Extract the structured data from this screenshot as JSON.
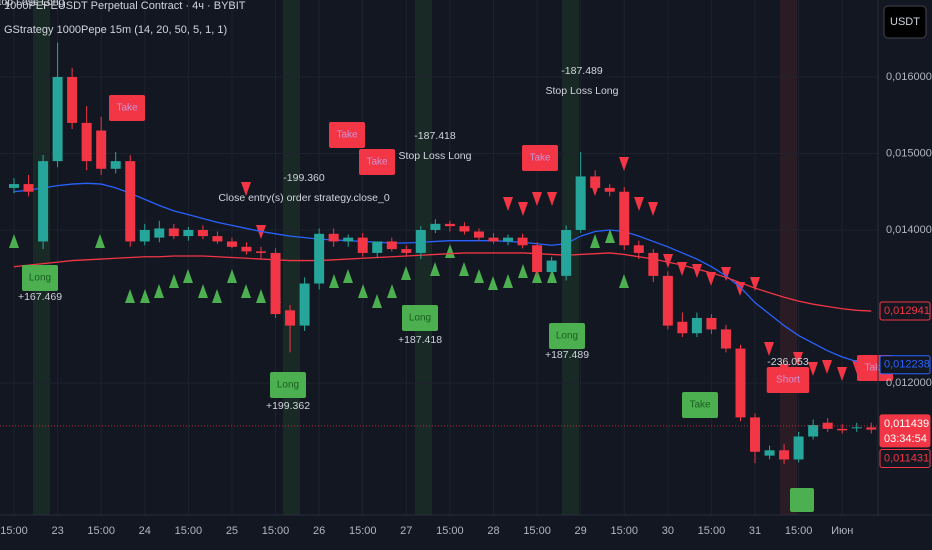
{
  "header": {
    "symbol": "1000PEPEUSDT Perpetual Contract · 4ч · BYBIT",
    "indicator": "GStrategy 1000Pepe 15m (14, 20, 50, 5, 1, 1)",
    "currency_button": "USDT"
  },
  "chart_data": {
    "type": "candlestick",
    "categories": [
      "15:00",
      null,
      null,
      "23",
      null,
      null,
      "15:00",
      null,
      null,
      "24",
      null,
      null,
      "15:00",
      null,
      null,
      "25",
      null,
      null,
      "15:00",
      null,
      null,
      "26",
      null,
      null,
      "15:00",
      null,
      null,
      "27",
      null,
      null,
      "15:00",
      null,
      null,
      "28",
      null,
      null,
      "15:00",
      null,
      null,
      "29",
      null,
      null,
      "15:00",
      null,
      null,
      "30",
      null,
      null,
      "15:00",
      null,
      null,
      "31",
      null,
      null,
      "15:00",
      null,
      null,
      "Июн",
      null,
      null
    ],
    "open": [
      0.01455,
      0.0146,
      0.01385,
      0.0149,
      0.016,
      0.0154,
      0.0153,
      0.0148,
      0.0149,
      0.01385,
      0.0139,
      0.01402,
      0.01392,
      0.014,
      0.01392,
      0.01385,
      0.01378,
      0.01372,
      0.0137,
      0.01295,
      0.01275,
      0.0133,
      0.01395,
      0.01385,
      0.0139,
      0.0137,
      0.01385,
      0.01375,
      0.0137,
      0.014,
      0.01408,
      0.01405,
      0.01398,
      0.0139,
      0.01385,
      0.0139,
      0.0138,
      0.01345,
      0.0134,
      0.014,
      0.0147,
      0.01455,
      0.0145,
      0.0138,
      0.0137,
      0.0134,
      0.0128,
      0.01265,
      0.01285,
      0.0127,
      0.01245,
      0.01155,
      0.01105,
      0.01112,
      0.011,
      0.0113,
      0.01148,
      0.0114,
      0.01142,
      0.01142
    ],
    "high": [
      0.01468,
      0.01472,
      0.01498,
      0.01645,
      0.01612,
      0.01562,
      0.01548,
      0.01502,
      0.01498,
      0.01408,
      0.01412,
      0.01408,
      0.01404,
      0.01406,
      0.01398,
      0.0139,
      0.01384,
      0.01378,
      0.01376,
      0.01302,
      0.01338,
      0.01402,
      0.01402,
      0.01394,
      0.01396,
      0.01384,
      0.0139,
      0.0138,
      0.01405,
      0.01414,
      0.01412,
      0.0141,
      0.01402,
      0.01396,
      0.01394,
      0.01395,
      0.01384,
      0.01365,
      0.01406,
      0.01502,
      0.01478,
      0.0146,
      0.01456,
      0.01386,
      0.01375,
      0.01346,
      0.01292,
      0.01292,
      0.0129,
      0.01276,
      0.0125,
      0.0116,
      0.01118,
      0.0112,
      0.01136,
      0.01152,
      0.01154,
      0.01146,
      0.01148,
      0.01148
    ],
    "low": [
      0.01448,
      0.01444,
      0.01375,
      0.01482,
      0.01532,
      0.01478,
      0.01472,
      0.01474,
      0.01378,
      0.0138,
      0.01384,
      0.01388,
      0.01386,
      0.01388,
      0.01382,
      0.01376,
      0.01368,
      0.01362,
      0.01285,
      0.0124,
      0.01268,
      0.01322,
      0.01378,
      0.01378,
      0.01365,
      0.01364,
      0.01372,
      0.01365,
      0.01362,
      0.01396,
      0.01398,
      0.01394,
      0.01386,
      0.01382,
      0.0138,
      0.01376,
      0.0134,
      0.0134,
      0.01334,
      0.01396,
      0.01448,
      0.01444,
      0.01374,
      0.01362,
      0.01332,
      0.0127,
      0.0126,
      0.0126,
      0.01264,
      0.0124,
      0.0115,
      0.01095,
      0.011,
      0.01094,
      0.01096,
      0.01126,
      0.01136,
      0.01134,
      0.01136,
      0.01134
    ],
    "close": [
      0.0146,
      0.0145,
      0.0149,
      0.016,
      0.0154,
      0.0149,
      0.0148,
      0.0149,
      0.01385,
      0.014,
      0.01402,
      0.01392,
      0.014,
      0.01392,
      0.01385,
      0.01378,
      0.01372,
      0.0137,
      0.0129,
      0.01275,
      0.0133,
      0.01395,
      0.01385,
      0.0139,
      0.0137,
      0.01385,
      0.01375,
      0.0137,
      0.014,
      0.01408,
      0.01405,
      0.01398,
      0.0139,
      0.01385,
      0.0139,
      0.0138,
      0.01345,
      0.0136,
      0.014,
      0.0147,
      0.01455,
      0.0145,
      0.0138,
      0.0137,
      0.0134,
      0.01275,
      0.01265,
      0.01285,
      0.0127,
      0.01245,
      0.01155,
      0.0111,
      0.01112,
      0.011,
      0.0113,
      0.01145,
      0.0114,
      0.01138,
      0.01142,
      0.01139
    ],
    "up_color": "#26a69a",
    "down_color": "#f23645",
    "moving_averages": [
      {
        "color": "#2962ff",
        "values": [
          0.0145,
          0.01452,
          0.01455,
          0.01458,
          0.0146,
          0.01461,
          0.0146,
          0.01455,
          0.01448,
          0.0144,
          0.01432,
          0.01425,
          0.0142,
          0.01415,
          0.0141,
          0.01406,
          0.01402,
          0.01398,
          0.01395,
          0.01392,
          0.0139,
          0.01388,
          0.01387,
          0.01386,
          0.01385,
          0.01384,
          0.01383,
          0.01383,
          0.01384,
          0.01385,
          0.01386,
          0.01386,
          0.01386,
          0.01386,
          0.01385,
          0.01384,
          0.01382,
          0.0138,
          0.01382,
          0.01392,
          0.01398,
          0.014,
          0.01398,
          0.01392,
          0.01385,
          0.01378,
          0.0137,
          0.01362,
          0.01352,
          0.0134,
          0.01325,
          0.01305,
          0.0129,
          0.01275,
          0.01262,
          0.01252,
          0.01242,
          0.01234,
          0.01228,
          0.01224
        ]
      },
      {
        "color": "#f23645",
        "values": [
          0.01352,
          0.01354,
          0.01356,
          0.01358,
          0.0136,
          0.01361,
          0.01362,
          0.01363,
          0.01364,
          0.01365,
          0.01365,
          0.01366,
          0.01366,
          0.01366,
          0.01365,
          0.01364,
          0.01363,
          0.01362,
          0.01361,
          0.0136,
          0.0136,
          0.0136,
          0.01361,
          0.01362,
          0.01363,
          0.01364,
          0.01365,
          0.01366,
          0.01367,
          0.01368,
          0.01369,
          0.0137,
          0.0137,
          0.0137,
          0.0137,
          0.0137,
          0.01369,
          0.01368,
          0.01367,
          0.01368,
          0.01369,
          0.0137,
          0.01368,
          0.01365,
          0.01362,
          0.01358,
          0.01354,
          0.01349,
          0.01344,
          0.01338,
          0.01331,
          0.01324,
          0.01318,
          0.01312,
          0.01307,
          0.01303,
          0.013,
          0.01297,
          0.01295,
          0.01294
        ]
      }
    ],
    "ylim": [
      0.0103,
      0.017
    ],
    "yticks": [
      {
        "value": 0.016,
        "label": "0,016000"
      },
      {
        "value": 0.015,
        "label": "0,015000"
      },
      {
        "value": 0.014,
        "label": "0,014000"
      },
      {
        "value": 0.012,
        "label": "0,012000"
      }
    ],
    "grid": true,
    "price_labels": [
      {
        "value": 0.012941,
        "label": "0,012941",
        "color": "#f23645",
        "filled": false
      },
      {
        "value": 0.012238,
        "label": "0,012238",
        "color": "#2962ff",
        "filled": false
      },
      {
        "value": 0.011439,
        "label": "0,011439",
        "color": "#f23645",
        "filled": true,
        "countdown": "03:34:54"
      },
      {
        "value": 0.011431,
        "label": "0,011431",
        "color": "#f23645",
        "filled": false
      }
    ],
    "annotations": [
      "Stop Loss Long",
      "Long",
      "+167.469",
      "-199.360",
      "Close entry(s) order strategy.close_0",
      "Long",
      "+199.362",
      "-187.418",
      "Stop Loss Long",
      "Long",
      "+187.418",
      "-187.489",
      "Stop Loss Long",
      "Long",
      "+187.489",
      "-236.053",
      "Short",
      "Take",
      "Take",
      "Take",
      "Take",
      "Take",
      "Take"
    ]
  }
}
